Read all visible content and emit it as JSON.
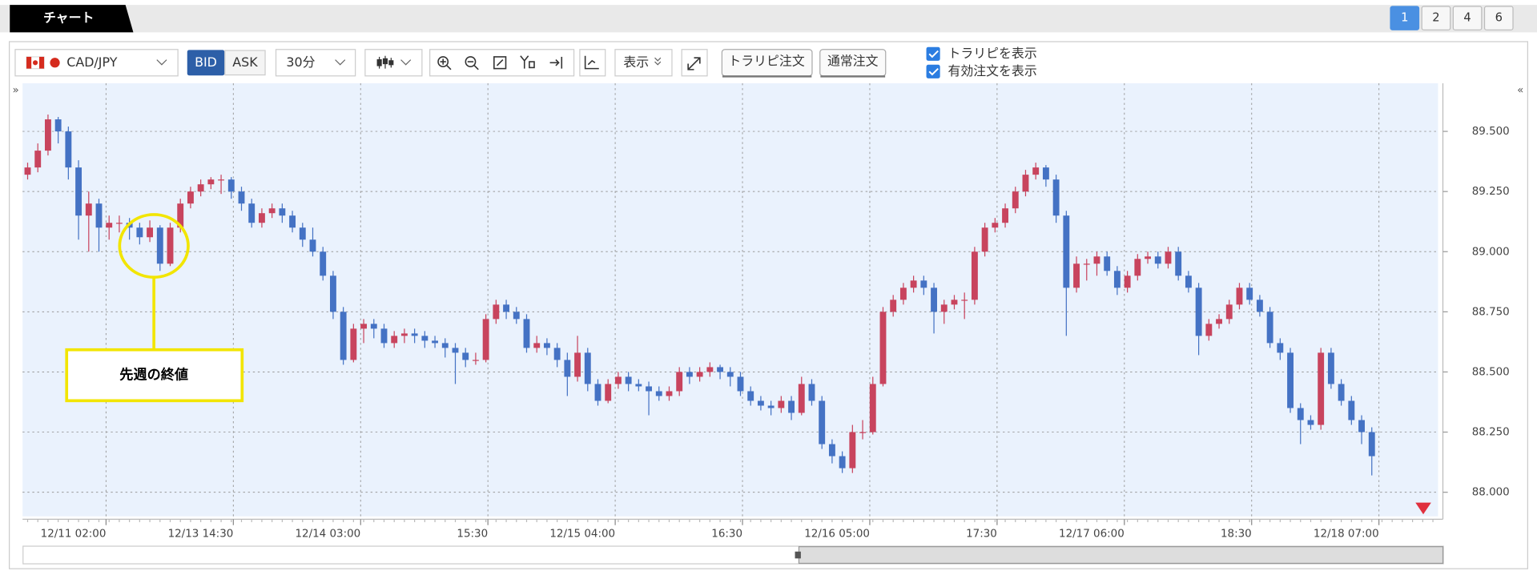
{
  "tabs": {
    "title": "チャート",
    "pages": [
      "1",
      "2",
      "4",
      "6"
    ]
  },
  "toolbar": {
    "pair": "CAD/JPY",
    "bid": "BID",
    "ask": "ASK",
    "timeframe": "30分",
    "display": "表示",
    "trarip_order": "トラリピ注文",
    "normal_order": "通常注文",
    "show_trarip": "トラリピを表示",
    "show_orders": "有効注文を表示"
  },
  "chart_data": {
    "type": "candlestick",
    "annotation": "先週の終値",
    "up_color": "#c8445e",
    "down_color": "#4472c4",
    "grid": true,
    "ylim": [
      87.9,
      89.7
    ],
    "yticks": [
      {
        "value": 88,
        "label": "88.000"
      },
      {
        "value": 88.25,
        "label": "88.250"
      },
      {
        "value": 88.5,
        "label": "88.500"
      },
      {
        "value": 88.75,
        "label": "88.750"
      },
      {
        "value": 89,
        "label": "89.000"
      },
      {
        "value": 89.25,
        "label": "89.250"
      },
      {
        "value": 89.5,
        "label": "89.500"
      }
    ],
    "xlim": [
      -0.5,
      138.5
    ],
    "xticks": [
      {
        "value": 7.7,
        "label": "12/11 02:00"
      },
      {
        "value": 20.2,
        "label": "12/13 14:30"
      },
      {
        "value": 32.7,
        "label": "12/14 03:00"
      },
      {
        "value": 45.2,
        "label": "15:30"
      },
      {
        "value": 57.7,
        "label": "12/15 04:00"
      },
      {
        "value": 70.2,
        "label": "16:30"
      },
      {
        "value": 82.7,
        "label": "12/16 05:00"
      },
      {
        "value": 95.2,
        "label": "17:30"
      },
      {
        "value": 107.7,
        "label": "12/17 06:00"
      },
      {
        "value": 120.2,
        "label": "18:30"
      },
      {
        "value": 132.7,
        "label": "12/18 07:00"
      }
    ],
    "candles": [
      [
        89.32,
        89.37,
        89.3,
        89.35
      ],
      [
        89.35,
        89.45,
        89.33,
        89.42
      ],
      [
        89.42,
        89.57,
        89.4,
        89.55
      ],
      [
        89.55,
        89.56,
        89.45,
        89.5
      ],
      [
        89.5,
        89.52,
        89.3,
        89.35
      ],
      [
        89.35,
        89.38,
        89.05,
        89.15
      ],
      [
        89.15,
        89.25,
        89.0,
        89.2
      ],
      [
        89.2,
        89.22,
        89.0,
        89.1
      ],
      [
        89.1,
        89.15,
        89.05,
        89.12
      ],
      [
        89.12,
        89.15,
        89.08,
        89.12
      ],
      [
        89.12,
        89.14,
        89.05,
        89.1
      ],
      [
        89.1,
        89.12,
        89.03,
        89.06
      ],
      [
        89.06,
        89.13,
        89.04,
        89.1
      ],
      [
        89.1,
        89.11,
        88.92,
        88.95
      ],
      [
        88.95,
        89.12,
        88.94,
        89.1
      ],
      [
        89.1,
        89.22,
        89.08,
        89.2
      ],
      [
        89.2,
        89.27,
        89.18,
        89.25
      ],
      [
        89.25,
        89.3,
        89.23,
        89.28
      ],
      [
        89.28,
        89.31,
        89.26,
        89.3
      ],
      [
        89.3,
        89.32,
        89.24,
        89.3
      ],
      [
        89.3,
        89.31,
        89.22,
        89.25
      ],
      [
        89.25,
        89.27,
        89.17,
        89.2
      ],
      [
        89.2,
        89.22,
        89.1,
        89.12
      ],
      [
        89.12,
        89.18,
        89.1,
        89.16
      ],
      [
        89.16,
        89.2,
        89.14,
        89.18
      ],
      [
        89.18,
        89.2,
        89.12,
        89.15
      ],
      [
        89.15,
        89.17,
        89.08,
        89.1
      ],
      [
        89.1,
        89.12,
        89.02,
        89.05
      ],
      [
        89.05,
        89.1,
        88.98,
        89.0
      ],
      [
        89.0,
        89.02,
        88.88,
        88.9
      ],
      [
        88.9,
        88.92,
        88.72,
        88.75
      ],
      [
        88.75,
        88.77,
        88.53,
        88.55
      ],
      [
        88.55,
        88.7,
        88.54,
        88.68
      ],
      [
        88.68,
        88.72,
        88.62,
        88.7
      ],
      [
        88.7,
        88.72,
        88.64,
        88.68
      ],
      [
        88.68,
        88.7,
        88.6,
        88.62
      ],
      [
        88.62,
        88.67,
        88.6,
        88.65
      ],
      [
        88.65,
        88.68,
        88.62,
        88.66
      ],
      [
        88.66,
        88.68,
        88.62,
        88.65
      ],
      [
        88.65,
        88.67,
        88.6,
        88.63
      ],
      [
        88.63,
        88.65,
        88.6,
        88.62
      ],
      [
        88.62,
        88.64,
        88.56,
        88.6
      ],
      [
        88.6,
        88.62,
        88.45,
        88.58
      ],
      [
        88.58,
        88.6,
        88.52,
        88.55
      ],
      [
        88.55,
        88.58,
        88.53,
        88.55
      ],
      [
        88.55,
        88.74,
        88.54,
        88.72
      ],
      [
        88.72,
        88.8,
        88.7,
        88.78
      ],
      [
        88.78,
        88.8,
        88.72,
        88.75
      ],
      [
        88.75,
        88.77,
        88.7,
        88.72
      ],
      [
        88.72,
        88.74,
        88.58,
        88.6
      ],
      [
        88.6,
        88.65,
        88.58,
        88.62
      ],
      [
        88.62,
        88.64,
        88.57,
        88.6
      ],
      [
        88.6,
        88.62,
        88.52,
        88.55
      ],
      [
        88.55,
        88.58,
        88.4,
        88.48
      ],
      [
        88.48,
        88.65,
        88.46,
        88.58
      ],
      [
        88.58,
        88.6,
        88.42,
        88.45
      ],
      [
        88.45,
        88.47,
        88.36,
        88.38
      ],
      [
        88.38,
        88.47,
        88.37,
        88.45
      ],
      [
        88.45,
        88.5,
        88.43,
        88.48
      ],
      [
        88.48,
        88.5,
        88.42,
        88.45
      ],
      [
        88.45,
        88.47,
        88.42,
        88.44
      ],
      [
        88.44,
        88.46,
        88.32,
        88.42
      ],
      [
        88.42,
        88.44,
        88.38,
        88.4
      ],
      [
        88.4,
        88.44,
        88.38,
        88.42
      ],
      [
        88.42,
        88.52,
        88.4,
        88.5
      ],
      [
        88.5,
        88.52,
        88.45,
        88.48
      ],
      [
        88.48,
        88.52,
        88.46,
        88.5
      ],
      [
        88.5,
        88.54,
        88.48,
        88.52
      ],
      [
        88.52,
        88.53,
        88.47,
        88.5
      ],
      [
        88.5,
        88.52,
        88.44,
        88.48
      ],
      [
        88.48,
        88.5,
        88.4,
        88.42
      ],
      [
        88.42,
        88.44,
        88.36,
        88.38
      ],
      [
        88.38,
        88.4,
        88.34,
        88.36
      ],
      [
        88.36,
        88.38,
        88.32,
        88.35
      ],
      [
        88.35,
        88.4,
        88.33,
        88.38
      ],
      [
        88.38,
        88.4,
        88.3,
        88.33
      ],
      [
        88.33,
        88.48,
        88.32,
        88.45
      ],
      [
        88.45,
        88.47,
        88.36,
        88.38
      ],
      [
        88.38,
        88.4,
        88.18,
        88.2
      ],
      [
        88.2,
        88.22,
        88.12,
        88.15
      ],
      [
        88.15,
        88.17,
        88.08,
        88.1
      ],
      [
        88.1,
        88.28,
        88.08,
        88.25
      ],
      [
        88.25,
        88.3,
        88.22,
        88.25
      ],
      [
        88.25,
        88.48,
        88.24,
        88.45
      ],
      [
        88.45,
        88.77,
        88.44,
        88.75
      ],
      [
        88.75,
        88.82,
        88.73,
        88.8
      ],
      [
        88.8,
        88.87,
        88.78,
        88.85
      ],
      [
        88.85,
        88.9,
        88.83,
        88.88
      ],
      [
        88.88,
        88.9,
        88.82,
        88.85
      ],
      [
        88.85,
        88.87,
        88.66,
        88.75
      ],
      [
        88.75,
        88.8,
        88.7,
        88.78
      ],
      [
        88.78,
        88.82,
        88.76,
        88.8
      ],
      [
        88.8,
        88.83,
        88.72,
        88.8
      ],
      [
        88.8,
        89.02,
        88.78,
        89.0
      ],
      [
        89.0,
        89.12,
        88.98,
        89.1
      ],
      [
        89.1,
        89.14,
        89.08,
        89.12
      ],
      [
        89.12,
        89.2,
        89.1,
        89.18
      ],
      [
        89.18,
        89.27,
        89.16,
        89.25
      ],
      [
        89.25,
        89.34,
        89.23,
        89.32
      ],
      [
        89.32,
        89.37,
        89.3,
        89.35
      ],
      [
        89.35,
        89.36,
        89.27,
        89.3
      ],
      [
        89.3,
        89.32,
        89.12,
        89.15
      ],
      [
        89.15,
        89.17,
        88.65,
        88.85
      ],
      [
        88.85,
        88.98,
        88.83,
        88.95
      ],
      [
        88.95,
        88.97,
        88.88,
        88.95
      ],
      [
        88.95,
        89.0,
        88.9,
        88.98
      ],
      [
        88.98,
        89.0,
        88.9,
        88.92
      ],
      [
        88.92,
        88.94,
        88.82,
        88.85
      ],
      [
        88.85,
        88.92,
        88.83,
        88.9
      ],
      [
        88.9,
        88.99,
        88.88,
        88.97
      ],
      [
        88.97,
        89.0,
        88.95,
        88.98
      ],
      [
        88.98,
        89.0,
        88.93,
        88.95
      ],
      [
        88.95,
        89.02,
        88.93,
        89.0
      ],
      [
        89.0,
        89.02,
        88.88,
        88.9
      ],
      [
        88.9,
        88.92,
        88.83,
        88.85
      ],
      [
        88.85,
        88.87,
        88.57,
        88.65
      ],
      [
        88.65,
        88.72,
        88.63,
        88.7
      ],
      [
        88.7,
        88.74,
        88.68,
        88.72
      ],
      [
        88.72,
        88.8,
        88.7,
        88.78
      ],
      [
        88.78,
        88.87,
        88.76,
        88.85
      ],
      [
        88.85,
        88.87,
        88.78,
        88.8
      ],
      [
        88.8,
        88.82,
        88.73,
        88.75
      ],
      [
        88.75,
        88.77,
        88.6,
        88.62
      ],
      [
        88.62,
        88.64,
        88.55,
        88.58
      ],
      [
        88.58,
        88.6,
        88.33,
        88.35
      ],
      [
        88.35,
        88.37,
        88.2,
        88.3
      ],
      [
        88.3,
        88.32,
        88.26,
        88.28
      ],
      [
        88.28,
        88.6,
        88.26,
        88.58
      ],
      [
        88.58,
        88.6,
        88.43,
        88.45
      ],
      [
        88.45,
        88.47,
        88.36,
        88.38
      ],
      [
        88.38,
        88.4,
        88.28,
        88.3
      ],
      [
        88.3,
        88.32,
        88.2,
        88.25
      ],
      [
        88.25,
        88.27,
        88.07,
        88.15
      ]
    ]
  }
}
